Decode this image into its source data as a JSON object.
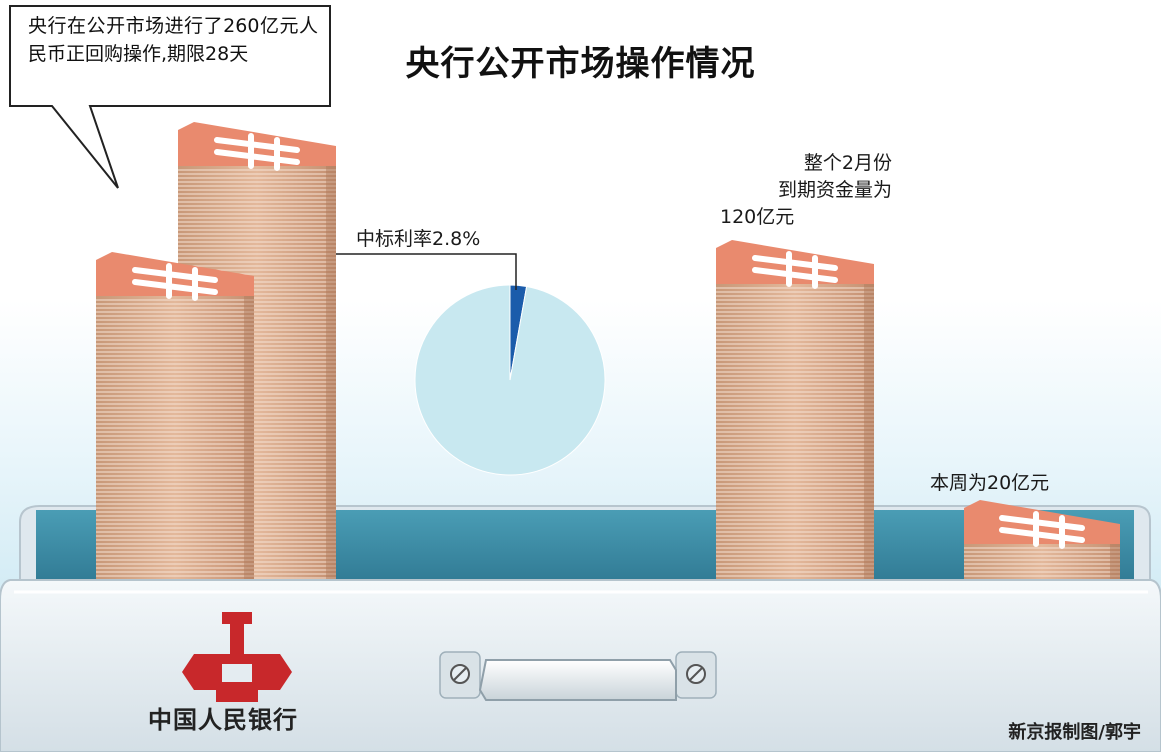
{
  "title": "央行公开市场操作情况",
  "callout": "央行在公开市场进行了260亿元人民币正回购操作,期限28天",
  "labels": {
    "rate": "中标利率2.8%",
    "month_total": [
      "整个2月份",
      "到期资金量为",
      "120亿元"
    ],
    "week_total": "本周为20亿元"
  },
  "logo_text": "中国人民银行",
  "credit": "新京报制图/郭宇",
  "colors": {
    "sky": "#d6eef7",
    "water": "#3e8ea6",
    "tray": "#e4ecf1",
    "stack_side": "#d8a98a",
    "stack_top": "#e98a6e",
    "pie_main": "#c8e8f0",
    "pie_slice": "#1b5cab",
    "logo": "#c8282b"
  },
  "chart_data": {
    "type": "pie",
    "title": "",
    "slices": [
      {
        "label": "中标利率",
        "value": 2.8
      },
      {
        "label": "",
        "value": 97.2
      }
    ],
    "rate_percent": 2.8
  }
}
